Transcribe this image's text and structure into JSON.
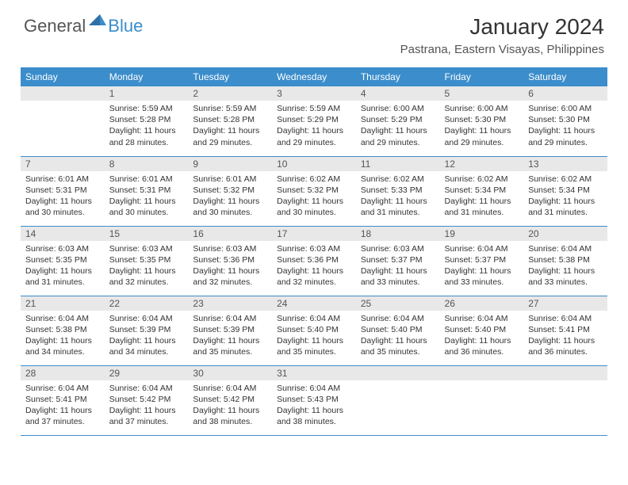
{
  "brand": {
    "part1": "General",
    "part2": "Blue"
  },
  "title": "January 2024",
  "location": "Pastrana, Eastern Visayas, Philippines",
  "headers": [
    "Sunday",
    "Monday",
    "Tuesday",
    "Wednesday",
    "Thursday",
    "Friday",
    "Saturday"
  ],
  "colors": {
    "header_bg": "#3b8dcb",
    "header_text": "#ffffff",
    "daynum_bg": "#e8e8e8",
    "text": "#333333",
    "border": "#3b8dcb"
  },
  "fonts": {
    "title_size": 28,
    "location_size": 15,
    "header_size": 12,
    "daynum_size": 12,
    "body_size": 10.5
  },
  "weeks": [
    [
      {
        "num": "",
        "lines": []
      },
      {
        "num": "1",
        "lines": [
          "Sunrise: 5:59 AM",
          "Sunset: 5:28 PM",
          "Daylight: 11 hours",
          "and 28 minutes."
        ]
      },
      {
        "num": "2",
        "lines": [
          "Sunrise: 5:59 AM",
          "Sunset: 5:28 PM",
          "Daylight: 11 hours",
          "and 29 minutes."
        ]
      },
      {
        "num": "3",
        "lines": [
          "Sunrise: 5:59 AM",
          "Sunset: 5:29 PM",
          "Daylight: 11 hours",
          "and 29 minutes."
        ]
      },
      {
        "num": "4",
        "lines": [
          "Sunrise: 6:00 AM",
          "Sunset: 5:29 PM",
          "Daylight: 11 hours",
          "and 29 minutes."
        ]
      },
      {
        "num": "5",
        "lines": [
          "Sunrise: 6:00 AM",
          "Sunset: 5:30 PM",
          "Daylight: 11 hours",
          "and 29 minutes."
        ]
      },
      {
        "num": "6",
        "lines": [
          "Sunrise: 6:00 AM",
          "Sunset: 5:30 PM",
          "Daylight: 11 hours",
          "and 29 minutes."
        ]
      }
    ],
    [
      {
        "num": "7",
        "lines": [
          "Sunrise: 6:01 AM",
          "Sunset: 5:31 PM",
          "Daylight: 11 hours",
          "and 30 minutes."
        ]
      },
      {
        "num": "8",
        "lines": [
          "Sunrise: 6:01 AM",
          "Sunset: 5:31 PM",
          "Daylight: 11 hours",
          "and 30 minutes."
        ]
      },
      {
        "num": "9",
        "lines": [
          "Sunrise: 6:01 AM",
          "Sunset: 5:32 PM",
          "Daylight: 11 hours",
          "and 30 minutes."
        ]
      },
      {
        "num": "10",
        "lines": [
          "Sunrise: 6:02 AM",
          "Sunset: 5:32 PM",
          "Daylight: 11 hours",
          "and 30 minutes."
        ]
      },
      {
        "num": "11",
        "lines": [
          "Sunrise: 6:02 AM",
          "Sunset: 5:33 PM",
          "Daylight: 11 hours",
          "and 31 minutes."
        ]
      },
      {
        "num": "12",
        "lines": [
          "Sunrise: 6:02 AM",
          "Sunset: 5:34 PM",
          "Daylight: 11 hours",
          "and 31 minutes."
        ]
      },
      {
        "num": "13",
        "lines": [
          "Sunrise: 6:02 AM",
          "Sunset: 5:34 PM",
          "Daylight: 11 hours",
          "and 31 minutes."
        ]
      }
    ],
    [
      {
        "num": "14",
        "lines": [
          "Sunrise: 6:03 AM",
          "Sunset: 5:35 PM",
          "Daylight: 11 hours",
          "and 31 minutes."
        ]
      },
      {
        "num": "15",
        "lines": [
          "Sunrise: 6:03 AM",
          "Sunset: 5:35 PM",
          "Daylight: 11 hours",
          "and 32 minutes."
        ]
      },
      {
        "num": "16",
        "lines": [
          "Sunrise: 6:03 AM",
          "Sunset: 5:36 PM",
          "Daylight: 11 hours",
          "and 32 minutes."
        ]
      },
      {
        "num": "17",
        "lines": [
          "Sunrise: 6:03 AM",
          "Sunset: 5:36 PM",
          "Daylight: 11 hours",
          "and 32 minutes."
        ]
      },
      {
        "num": "18",
        "lines": [
          "Sunrise: 6:03 AM",
          "Sunset: 5:37 PM",
          "Daylight: 11 hours",
          "and 33 minutes."
        ]
      },
      {
        "num": "19",
        "lines": [
          "Sunrise: 6:04 AM",
          "Sunset: 5:37 PM",
          "Daylight: 11 hours",
          "and 33 minutes."
        ]
      },
      {
        "num": "20",
        "lines": [
          "Sunrise: 6:04 AM",
          "Sunset: 5:38 PM",
          "Daylight: 11 hours",
          "and 33 minutes."
        ]
      }
    ],
    [
      {
        "num": "21",
        "lines": [
          "Sunrise: 6:04 AM",
          "Sunset: 5:38 PM",
          "Daylight: 11 hours",
          "and 34 minutes."
        ]
      },
      {
        "num": "22",
        "lines": [
          "Sunrise: 6:04 AM",
          "Sunset: 5:39 PM",
          "Daylight: 11 hours",
          "and 34 minutes."
        ]
      },
      {
        "num": "23",
        "lines": [
          "Sunrise: 6:04 AM",
          "Sunset: 5:39 PM",
          "Daylight: 11 hours",
          "and 35 minutes."
        ]
      },
      {
        "num": "24",
        "lines": [
          "Sunrise: 6:04 AM",
          "Sunset: 5:40 PM",
          "Daylight: 11 hours",
          "and 35 minutes."
        ]
      },
      {
        "num": "25",
        "lines": [
          "Sunrise: 6:04 AM",
          "Sunset: 5:40 PM",
          "Daylight: 11 hours",
          "and 35 minutes."
        ]
      },
      {
        "num": "26",
        "lines": [
          "Sunrise: 6:04 AM",
          "Sunset: 5:40 PM",
          "Daylight: 11 hours",
          "and 36 minutes."
        ]
      },
      {
        "num": "27",
        "lines": [
          "Sunrise: 6:04 AM",
          "Sunset: 5:41 PM",
          "Daylight: 11 hours",
          "and 36 minutes."
        ]
      }
    ],
    [
      {
        "num": "28",
        "lines": [
          "Sunrise: 6:04 AM",
          "Sunset: 5:41 PM",
          "Daylight: 11 hours",
          "and 37 minutes."
        ]
      },
      {
        "num": "29",
        "lines": [
          "Sunrise: 6:04 AM",
          "Sunset: 5:42 PM",
          "Daylight: 11 hours",
          "and 37 minutes."
        ]
      },
      {
        "num": "30",
        "lines": [
          "Sunrise: 6:04 AM",
          "Sunset: 5:42 PM",
          "Daylight: 11 hours",
          "and 38 minutes."
        ]
      },
      {
        "num": "31",
        "lines": [
          "Sunrise: 6:04 AM",
          "Sunset: 5:43 PM",
          "Daylight: 11 hours",
          "and 38 minutes."
        ]
      },
      {
        "num": "",
        "lines": []
      },
      {
        "num": "",
        "lines": []
      },
      {
        "num": "",
        "lines": []
      }
    ]
  ]
}
